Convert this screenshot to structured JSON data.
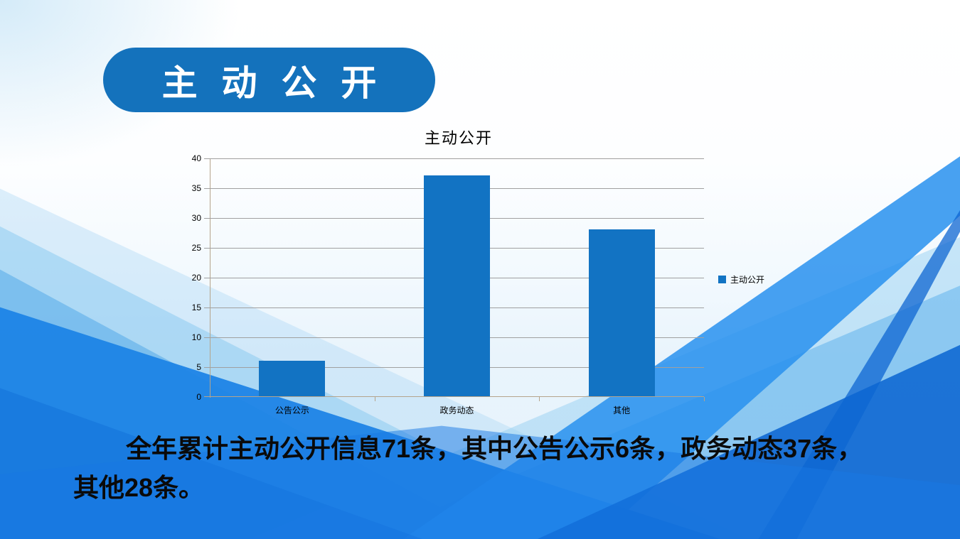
{
  "badge": {
    "label": "主 动 公 开"
  },
  "body": {
    "lines": [
      "全年累计主动公开信息71条，其中公告公示6条，政务动态37条，",
      "其他28条。"
    ]
  },
  "colors": {
    "badge_bg": "#1472bc",
    "bar": "#1273c3",
    "gridline": "#a0a0a0",
    "axis": "#b5a48c",
    "background_wave_blues": [
      "#ade0f4",
      "#86c7f0",
      "#54aae8",
      "#1e84e6",
      "#2890ee",
      "#0d65d2"
    ]
  },
  "chart_data": {
    "type": "bar",
    "title": "主动公开",
    "categories": [
      "公告公示",
      "政务动态",
      "其他"
    ],
    "series": [
      {
        "name": "主动公开",
        "values": [
          6,
          37,
          28
        ]
      }
    ],
    "ylim": [
      0,
      40
    ],
    "ytick_step": 5,
    "yticks": [
      0,
      5,
      10,
      15,
      20,
      25,
      30,
      35,
      40
    ],
    "grid": true,
    "legend_position": "right",
    "bar_color": "#1273c3",
    "plot_background": "transparent"
  }
}
